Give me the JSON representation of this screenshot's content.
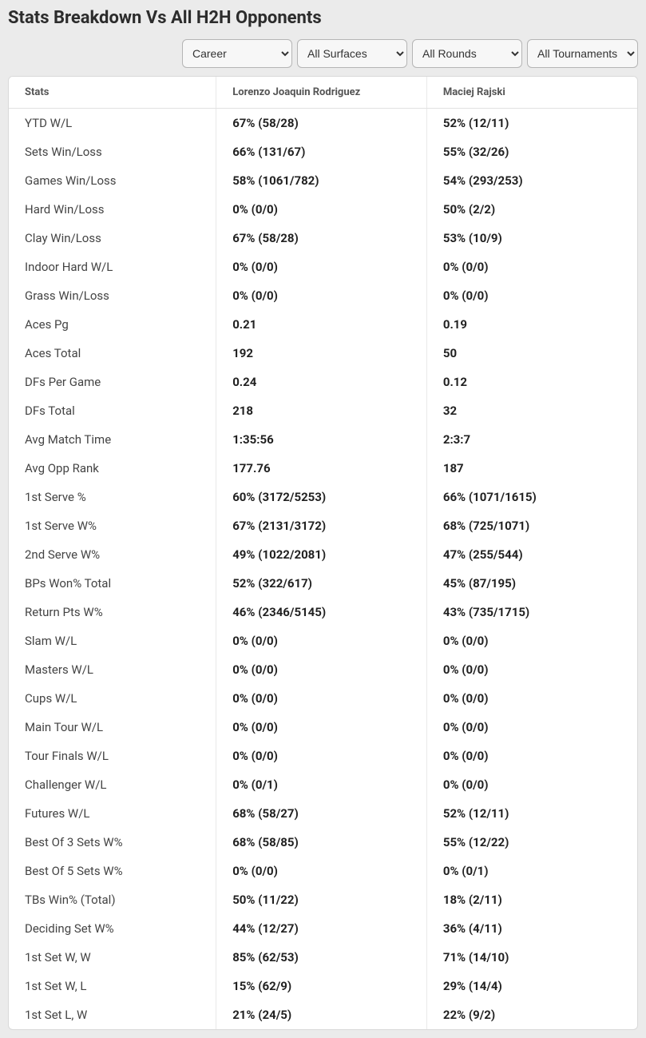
{
  "header": {
    "title": "Stats Breakdown Vs All H2H Opponents"
  },
  "filters": {
    "period": {
      "selected": "Career"
    },
    "surface": {
      "selected": "All Surfaces"
    },
    "round": {
      "selected": "All Rounds"
    },
    "tournament": {
      "selected": "All Tournaments"
    }
  },
  "table": {
    "columns": [
      "Stats",
      "Lorenzo Joaquin Rodriguez",
      "Maciej Rajski"
    ],
    "rows": [
      {
        "stat": "YTD W/L",
        "p1": "67% (58/28)",
        "p2": "52% (12/11)"
      },
      {
        "stat": "Sets Win/Loss",
        "p1": "66% (131/67)",
        "p2": "55% (32/26)"
      },
      {
        "stat": "Games Win/Loss",
        "p1": "58% (1061/782)",
        "p2": "54% (293/253)"
      },
      {
        "stat": "Hard Win/Loss",
        "p1": "0% (0/0)",
        "p2": "50% (2/2)"
      },
      {
        "stat": "Clay Win/Loss",
        "p1": "67% (58/28)",
        "p2": "53% (10/9)"
      },
      {
        "stat": "Indoor Hard W/L",
        "p1": "0% (0/0)",
        "p2": "0% (0/0)"
      },
      {
        "stat": "Grass Win/Loss",
        "p1": "0% (0/0)",
        "p2": "0% (0/0)"
      },
      {
        "stat": "Aces Pg",
        "p1": "0.21",
        "p2": "0.19"
      },
      {
        "stat": "Aces Total",
        "p1": "192",
        "p2": "50"
      },
      {
        "stat": "DFs Per Game",
        "p1": "0.24",
        "p2": "0.12"
      },
      {
        "stat": "DFs Total",
        "p1": "218",
        "p2": "32"
      },
      {
        "stat": "Avg Match Time",
        "p1": "1:35:56",
        "p2": "2:3:7"
      },
      {
        "stat": "Avg Opp Rank",
        "p1": "177.76",
        "p2": "187"
      },
      {
        "stat": "1st Serve %",
        "p1": "60% (3172/5253)",
        "p2": "66% (1071/1615)"
      },
      {
        "stat": "1st Serve W%",
        "p1": "67% (2131/3172)",
        "p2": "68% (725/1071)"
      },
      {
        "stat": "2nd Serve W%",
        "p1": "49% (1022/2081)",
        "p2": "47% (255/544)"
      },
      {
        "stat": "BPs Won% Total",
        "p1": "52% (322/617)",
        "p2": "45% (87/195)"
      },
      {
        "stat": "Return Pts W%",
        "p1": "46% (2346/5145)",
        "p2": "43% (735/1715)"
      },
      {
        "stat": "Slam W/L",
        "p1": "0% (0/0)",
        "p2": "0% (0/0)"
      },
      {
        "stat": "Masters W/L",
        "p1": "0% (0/0)",
        "p2": "0% (0/0)"
      },
      {
        "stat": "Cups W/L",
        "p1": "0% (0/0)",
        "p2": "0% (0/0)"
      },
      {
        "stat": "Main Tour W/L",
        "p1": "0% (0/0)",
        "p2": "0% (0/0)"
      },
      {
        "stat": "Tour Finals W/L",
        "p1": "0% (0/0)",
        "p2": "0% (0/0)"
      },
      {
        "stat": "Challenger W/L",
        "p1": "0% (0/1)",
        "p2": "0% (0/0)"
      },
      {
        "stat": "Futures W/L",
        "p1": "68% (58/27)",
        "p2": "52% (12/11)"
      },
      {
        "stat": "Best Of 3 Sets W%",
        "p1": "68% (58/85)",
        "p2": "55% (12/22)"
      },
      {
        "stat": "Best Of 5 Sets W%",
        "p1": "0% (0/0)",
        "p2": "0% (0/1)"
      },
      {
        "stat": "TBs Win% (Total)",
        "p1": "50% (11/22)",
        "p2": "18% (2/11)"
      },
      {
        "stat": "Deciding Set W%",
        "p1": "44% (12/27)",
        "p2": "36% (4/11)"
      },
      {
        "stat": "1st Set W, W",
        "p1": "85% (62/53)",
        "p2": "71% (14/10)"
      },
      {
        "stat": "1st Set W, L",
        "p1": "15% (62/9)",
        "p2": "29% (14/4)"
      },
      {
        "stat": "1st Set L, W",
        "p1": "21% (24/5)",
        "p2": "22% (9/2)"
      }
    ]
  }
}
